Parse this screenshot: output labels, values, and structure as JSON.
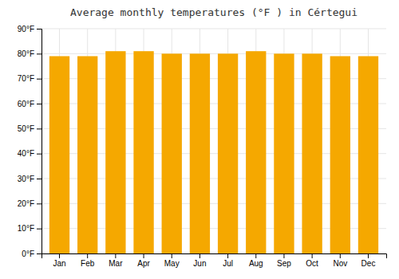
{
  "chart_data": {
    "type": "bar",
    "title": "Average monthly temperatures (°F ) in Cértegui",
    "categories": [
      "Jan",
      "Feb",
      "Mar",
      "Apr",
      "May",
      "Jun",
      "Jul",
      "Aug",
      "Sep",
      "Oct",
      "Nov",
      "Dec"
    ],
    "values": [
      79,
      79,
      81,
      81,
      80,
      80,
      80,
      81,
      80,
      80,
      79,
      79
    ],
    "color": "#F5A800",
    "ylim": [
      0,
      90
    ],
    "yticks": [
      {
        "value": 0,
        "label": "0°F"
      },
      {
        "value": 10,
        "label": "10°F"
      },
      {
        "value": 20,
        "label": "20°F"
      },
      {
        "value": 30,
        "label": "30°F"
      },
      {
        "value": 40,
        "label": "40°F"
      },
      {
        "value": 50,
        "label": "50°F"
      },
      {
        "value": 60,
        "label": "60°F"
      },
      {
        "value": 70,
        "label": "70°F"
      },
      {
        "value": 80,
        "label": "80°F"
      },
      {
        "value": 90,
        "label": "90°F"
      }
    ],
    "grid": true
  }
}
